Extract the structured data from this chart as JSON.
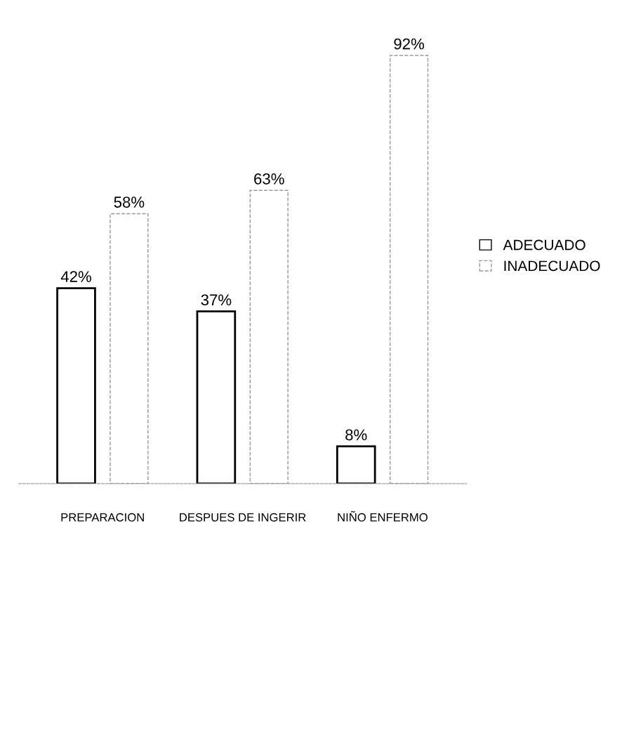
{
  "chart_data": {
    "type": "bar",
    "categories": [
      "PREPARACION",
      "DESPUES DE INGERIR",
      "NIÑO ENFERMO"
    ],
    "series": [
      {
        "name": "ADECUADO",
        "color": "#ffffff",
        "values": [
          42,
          37,
          8
        ],
        "value_labels": [
          "42%",
          "37%",
          "8%"
        ]
      },
      {
        "name": "INADECUADO",
        "color": "#ffffff",
        "line_style": "dashed",
        "values": [
          58,
          63,
          92
        ],
        "value_labels": [
          "58%",
          "63%",
          "92%"
        ]
      }
    ],
    "legend": "right",
    "grid": false,
    "tick_labels": "x"
  }
}
